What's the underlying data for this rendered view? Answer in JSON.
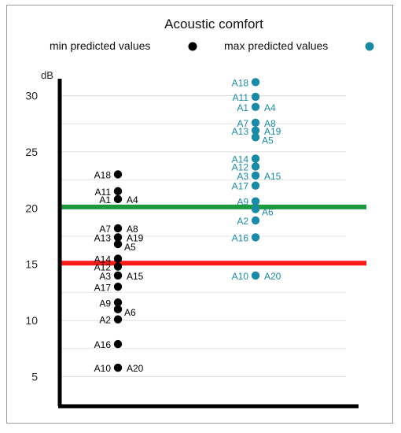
{
  "chart_data": {
    "type": "scatter",
    "title": "Acoustic comfort",
    "ylabel": "dB",
    "ylim": [
      3,
      31
    ],
    "yticks": [
      5,
      10,
      15,
      20,
      25,
      30
    ],
    "grid": true,
    "legend_position": "top",
    "reference_lines": [
      {
        "value": 20.1,
        "color": "#1a9a3c"
      },
      {
        "value": 15.1,
        "color": "#ff1a1a"
      }
    ],
    "series": [
      {
        "name": "min predicted values",
        "color": "#000000",
        "points": [
          {
            "label": "A18",
            "y": 23.0
          },
          {
            "label": "A11",
            "y": 21.5
          },
          {
            "label": "A1",
            "y": 20.8
          },
          {
            "label": "A4",
            "y": 20.8
          },
          {
            "label": "A7",
            "y": 18.2
          },
          {
            "label": "A8",
            "y": 18.2
          },
          {
            "label": "A13",
            "y": 17.4
          },
          {
            "label": "A19",
            "y": 17.4
          },
          {
            "label": "A5",
            "y": 16.8
          },
          {
            "label": "A14",
            "y": 15.5
          },
          {
            "label": "A12",
            "y": 14.8
          },
          {
            "label": "A3",
            "y": 14.0
          },
          {
            "label": "A15",
            "y": 14.0
          },
          {
            "label": "A17",
            "y": 13.0
          },
          {
            "label": "A9",
            "y": 11.6
          },
          {
            "label": "A6",
            "y": 11.0
          },
          {
            "label": "A2",
            "y": 10.1
          },
          {
            "label": "A16",
            "y": 7.9
          },
          {
            "label": "A10",
            "y": 5.8
          },
          {
            "label": "A20",
            "y": 5.8
          }
        ]
      },
      {
        "name": "max predicted values",
        "color": "#1a8aa6",
        "points": [
          {
            "label": "A18",
            "y": 31.2
          },
          {
            "label": "A11",
            "y": 29.9
          },
          {
            "label": "A1",
            "y": 29.0
          },
          {
            "label": "A4",
            "y": 29.0
          },
          {
            "label": "A7",
            "y": 27.6
          },
          {
            "label": "A8",
            "y": 27.6
          },
          {
            "label": "A13",
            "y": 26.9
          },
          {
            "label": "A19",
            "y": 26.9
          },
          {
            "label": "A5",
            "y": 26.3
          },
          {
            "label": "A14",
            "y": 24.4
          },
          {
            "label": "A12",
            "y": 23.7
          },
          {
            "label": "A3",
            "y": 22.9
          },
          {
            "label": "A15",
            "y": 22.9
          },
          {
            "label": "A17",
            "y": 22.0
          },
          {
            "label": "A9",
            "y": 20.6
          },
          {
            "label": "A6",
            "y": 19.9
          },
          {
            "label": "A2",
            "y": 18.9
          },
          {
            "label": "A16",
            "y": 17.4
          },
          {
            "label": "A10",
            "y": 14.0
          },
          {
            "label": "A20",
            "y": 14.0
          }
        ]
      }
    ]
  }
}
